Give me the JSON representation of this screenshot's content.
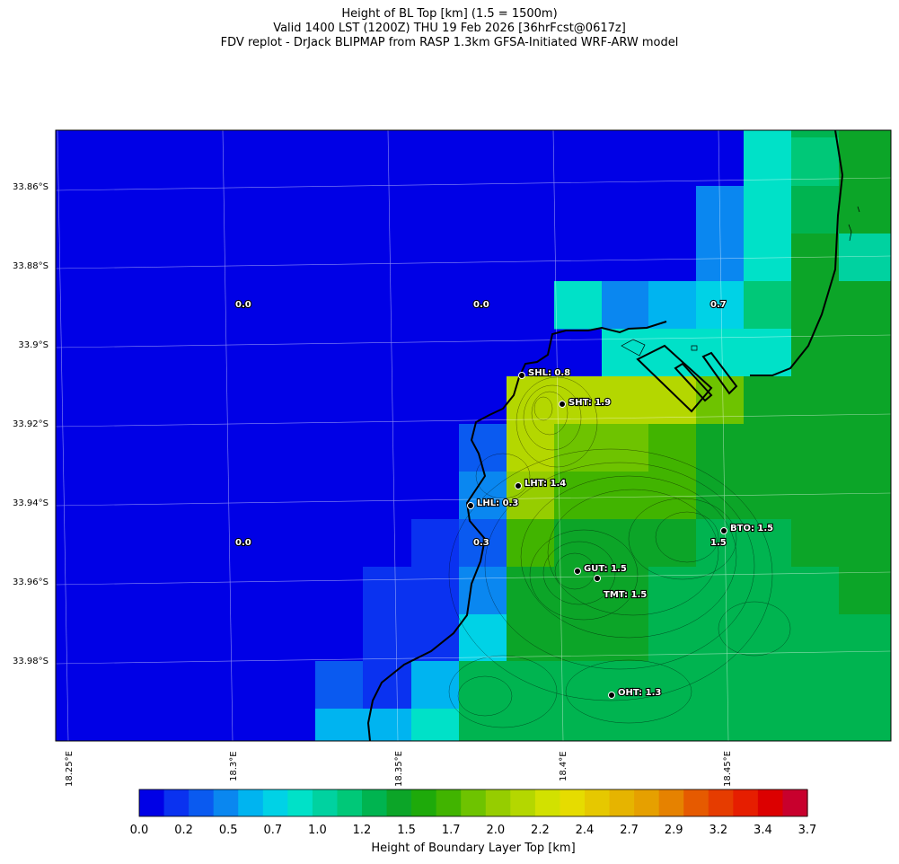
{
  "header": {
    "line1": "Height of BL Top [km] (1.5 = 1500m)",
    "line2": "Valid 1400 LST (1200Z) THU 19 Feb 2026 [36hrFcst@0617z]",
    "line3": "FDV replot - DrJack BLIPMAP from RASP 1.3km GFSA-Initiated WRF-ARW model"
  },
  "map": {
    "lat_labels": [
      "33.86°S",
      "33.88°S",
      "33.9°S",
      "33.92°S",
      "33.94°S",
      "33.96°S",
      "33.98°S"
    ],
    "lon_labels": [
      "18.25°E",
      "18.3°E",
      "18.35°E",
      "18.4°E",
      "18.45°E"
    ],
    "value_labels": [
      "0.0",
      "0.0",
      "0.7",
      "0.0",
      "0.3",
      "1.5"
    ],
    "stations": [
      {
        "label": "SHL: 0.8"
      },
      {
        "label": "SHT: 1.9"
      },
      {
        "label": "LHT: 1.4"
      },
      {
        "label": "LHL: 0.3"
      },
      {
        "label": "BTO: 1.5"
      },
      {
        "label": "GUT: 1.5"
      },
      {
        "label": "TMT: 1.5"
      },
      {
        "label": "OHT: 1.3"
      }
    ]
  },
  "colorbar": {
    "label": "Height of Boundary Layer Top [km]",
    "tick_labels": [
      "0.0",
      "0.2",
      "0.5",
      "0.7",
      "1.0",
      "1.2",
      "1.5",
      "1.7",
      "2.0",
      "2.2",
      "2.4",
      "2.7",
      "2.9",
      "3.2",
      "3.4",
      "3.7"
    ],
    "colors": [
      "#0000e6",
      "#0a32f0",
      "#0a5af0",
      "#0a87f0",
      "#00b4f0",
      "#00d2e6",
      "#00e1c8",
      "#00d2a0",
      "#00c878",
      "#00b450",
      "#0ca528",
      "#1eaa0a",
      "#41b400",
      "#6ec300",
      "#96cd00",
      "#b4d700",
      "#d2e100",
      "#e6dc00",
      "#e6c800",
      "#e6b400",
      "#e6a000",
      "#e68200",
      "#e65a00",
      "#e63c00",
      "#e61e00",
      "#dc0000",
      "#c8002d"
    ],
    "min": 0.0,
    "max": 3.7
  }
}
